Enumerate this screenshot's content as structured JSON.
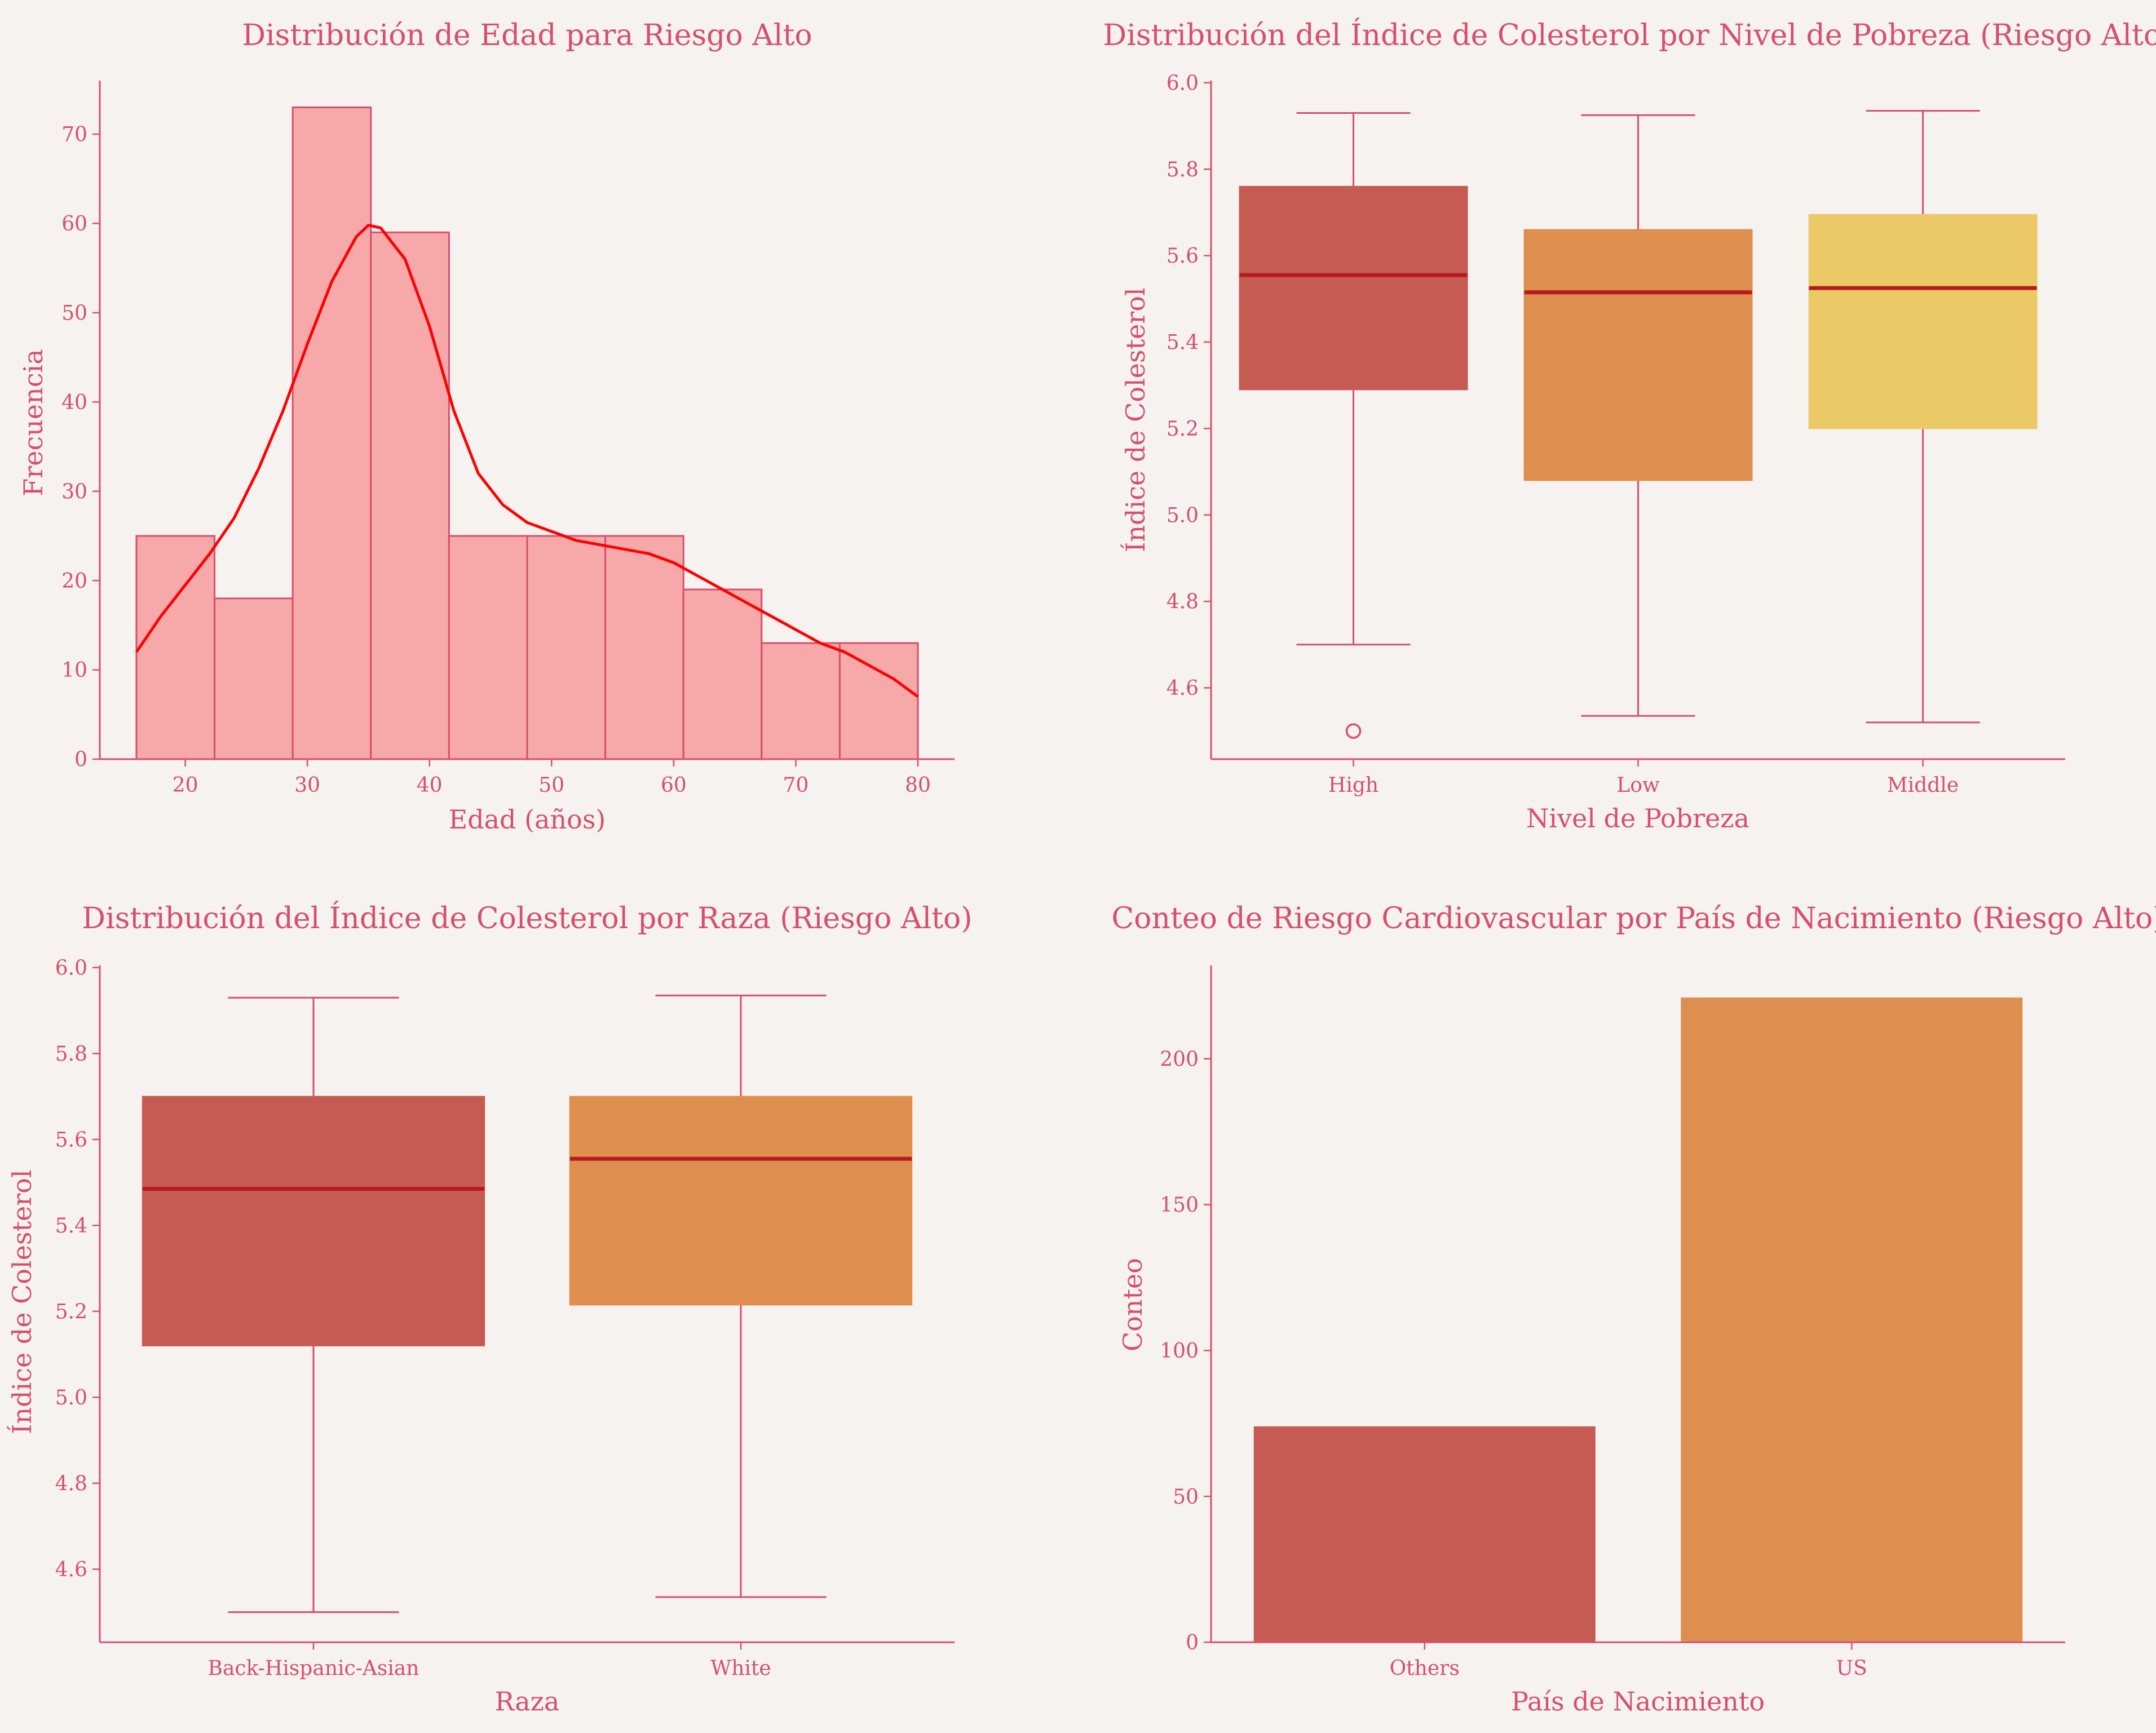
{
  "colors": {
    "background": "#f5f2ef",
    "text": "#d64f6e",
    "axis": "#d64f6e",
    "hist_fill": "#f7a8a8",
    "hist_edge": "#d64f6e",
    "kde_line": "#ff0000",
    "median": "#b71c1c",
    "palette": [
      "#c55b53",
      "#de8f50",
      "#ebc966"
    ]
  },
  "chart_data": [
    {
      "type": "histogram",
      "title": "Distribución de Edad para Riesgo Alto",
      "xlabel": "Edad (años)",
      "ylabel": "Frecuencia",
      "xlim": [
        13,
        83
      ],
      "ylim": [
        0,
        76
      ],
      "xticks": [
        20,
        30,
        40,
        50,
        60,
        70,
        80
      ],
      "yticks": [
        0,
        10,
        20,
        30,
        40,
        50,
        60,
        70
      ],
      "bins": [
        {
          "x0": 16.0,
          "x1": 22.4,
          "count": 25
        },
        {
          "x0": 22.4,
          "x1": 28.8,
          "count": 18
        },
        {
          "x0": 28.8,
          "x1": 35.2,
          "count": 73
        },
        {
          "x0": 35.2,
          "x1": 41.6,
          "count": 59
        },
        {
          "x0": 41.6,
          "x1": 48.0,
          "count": 25
        },
        {
          "x0": 48.0,
          "x1": 54.4,
          "count": 25
        },
        {
          "x0": 54.4,
          "x1": 60.8,
          "count": 25
        },
        {
          "x0": 60.8,
          "x1": 67.2,
          "count": 19
        },
        {
          "x0": 67.2,
          "x1": 73.6,
          "count": 13
        },
        {
          "x0": 73.6,
          "x1": 80.0,
          "count": 13
        }
      ],
      "kde": {
        "x": [
          16,
          18,
          20,
          22,
          24,
          26,
          28,
          30,
          32,
          34,
          35,
          36,
          38,
          40,
          42,
          44,
          46,
          48,
          50,
          52,
          54,
          56,
          58,
          60,
          62,
          64,
          66,
          68,
          70,
          72,
          74,
          76,
          78,
          80
        ],
        "y": [
          12,
          16,
          19.5,
          23,
          27,
          32.5,
          39,
          46.5,
          53.5,
          58.5,
          59.8,
          59.5,
          56,
          48.5,
          39,
          32,
          28.5,
          26.5,
          25.5,
          24.5,
          24,
          23.5,
          23,
          22,
          20.5,
          19,
          17.5,
          16,
          14.5,
          13,
          12,
          10.5,
          9,
          7
        ]
      }
    },
    {
      "type": "box",
      "title": "Distribución del Índice de Colesterol por Nivel de Pobreza (Riesgo Alto)",
      "xlabel": "Nivel de Pobreza",
      "ylabel": "Índice de Colesterol",
      "ylim": [
        4.435,
        6.005
      ],
      "yticks": [
        4.6,
        4.8,
        5.0,
        5.2,
        5.4,
        5.6,
        5.8,
        6.0
      ],
      "categories": [
        "High",
        "Low",
        "Middle"
      ],
      "boxes": [
        {
          "whisker_low": 4.7,
          "q1": 5.29,
          "median": 5.555,
          "q3": 5.76,
          "whisker_high": 5.93,
          "outliers": [
            4.5
          ]
        },
        {
          "whisker_low": 4.535,
          "q1": 5.08,
          "median": 5.515,
          "q3": 5.66,
          "whisker_high": 5.925,
          "outliers": []
        },
        {
          "whisker_low": 4.52,
          "q1": 5.2,
          "median": 5.525,
          "q3": 5.695,
          "whisker_high": 5.935,
          "outliers": []
        }
      ]
    },
    {
      "type": "box",
      "title": "Distribución del Índice de Colesterol por Raza (Riesgo Alto)",
      "xlabel": "Raza",
      "ylabel": "Índice de Colesterol",
      "ylim": [
        4.43,
        6.005
      ],
      "yticks": [
        4.6,
        4.8,
        5.0,
        5.2,
        5.4,
        5.6,
        5.8,
        6.0
      ],
      "categories": [
        "Back-Hispanic-Asian",
        "White"
      ],
      "boxes": [
        {
          "whisker_low": 4.5,
          "q1": 5.12,
          "median": 5.485,
          "q3": 5.7,
          "whisker_high": 5.93,
          "outliers": []
        },
        {
          "whisker_low": 4.535,
          "q1": 5.215,
          "median": 5.555,
          "q3": 5.7,
          "whisker_high": 5.935,
          "outliers": []
        }
      ]
    },
    {
      "type": "bar",
      "title": "Conteo de Riesgo Cardiovascular por País de Nacimiento (Riesgo Alto)",
      "xlabel": "País de Nacimiento",
      "ylabel": "Conteo",
      "ylim": [
        0,
        232
      ],
      "yticks": [
        0,
        50,
        100,
        150,
        200
      ],
      "categories": [
        "Others",
        "US"
      ],
      "values": [
        74,
        221
      ]
    }
  ]
}
